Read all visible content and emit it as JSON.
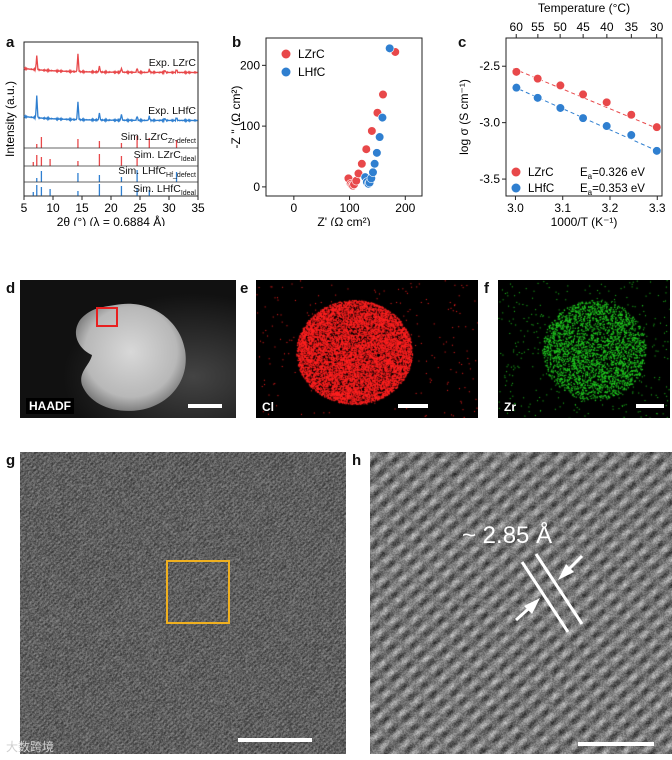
{
  "panel_labels": {
    "a": "a",
    "b": "b",
    "c": "c",
    "d": "d",
    "e": "e",
    "f": "f",
    "g": "g",
    "h": "h"
  },
  "chart_data": [
    {
      "type": "line",
      "panel": "a",
      "xlabel": "2θ (°) (λ = 0.6884 Å)",
      "ylabel": "Intensity (a.u.)",
      "xlim": [
        5,
        35
      ],
      "xticks": [
        5,
        10,
        15,
        20,
        25,
        30,
        35
      ],
      "series": [
        {
          "name": "Exp. LZrC",
          "color": "#e8484a",
          "peaks": [
            [
              7.2,
              14
            ],
            [
              14.3,
              18
            ],
            [
              18.0,
              6
            ],
            [
              21.8,
              4
            ],
            [
              24.5,
              4
            ],
            [
              26.6,
              3
            ],
            [
              29.3,
              2
            ],
            [
              31.3,
              3
            ]
          ]
        },
        {
          "name": "Exp. LHfC",
          "color": "#2f7fd0",
          "peaks": [
            [
              7.2,
              22
            ],
            [
              14.3,
              18
            ],
            [
              18.0,
              7
            ],
            [
              21.8,
              6
            ],
            [
              24.5,
              4
            ],
            [
              26.6,
              4
            ],
            [
              29.3,
              2
            ],
            [
              31.3,
              3
            ]
          ]
        },
        {
          "name": "Sim. LZrC",
          "subscript": "Zr-defect",
          "color": "#e8484a",
          "sticks": [
            7.2,
            8.0,
            14.3,
            18.0,
            21.8,
            24.5,
            26.6,
            31.3
          ]
        },
        {
          "name": "Sim. LZrC",
          "subscript": "Ideal",
          "color": "#e8484a",
          "sticks": [
            6.6,
            7.2,
            8.0,
            9.5,
            14.3,
            18.0,
            21.8,
            24.5
          ]
        },
        {
          "name": "Sim. LHfC",
          "subscript": "Hf_defect",
          "color": "#2f7fd0",
          "sticks": [
            7.2,
            8.0,
            14.3,
            18.0,
            21.8,
            24.5,
            31.3
          ]
        },
        {
          "name": "Sim. LHfC",
          "subscript": "Ideal",
          "color": "#2f7fd0",
          "sticks": [
            6.6,
            7.2,
            8.0,
            9.5,
            14.3,
            18.0,
            21.8,
            24.5,
            26.6
          ]
        }
      ]
    },
    {
      "type": "scatter",
      "panel": "b",
      "xlabel": "Z' (Ω cm²)",
      "ylabel": "-Z '' (Ω cm²)",
      "xlim": [
        -50,
        230
      ],
      "ylim": [
        -15,
        245
      ],
      "xticks": [
        0,
        100,
        200
      ],
      "yticks": [
        0,
        100,
        200
      ],
      "legend": "top-left",
      "series": [
        {
          "name": "LZrC",
          "color": "#e8484a",
          "x": [
            98,
            102,
            104,
            106,
            108,
            112,
            116,
            122,
            130,
            140,
            150,
            160,
            182
          ],
          "y": [
            14,
            5,
            3,
            2,
            4,
            10,
            22,
            38,
            62,
            92,
            122,
            152,
            222
          ]
        },
        {
          "name": "LHfC",
          "color": "#2f7fd0",
          "x": [
            128,
            131,
            134,
            136,
            139,
            142,
            145,
            149,
            154,
            159,
            172
          ],
          "y": [
            16,
            8,
            5,
            7,
            14,
            24,
            38,
            56,
            82,
            114,
            228
          ]
        }
      ]
    },
    {
      "type": "scatter",
      "panel": "c",
      "xlabel": "1000/T (K⁻¹)",
      "ylabel": "log σ (S cm⁻¹)",
      "top_xlabel": "Temperature (°C)",
      "xlim": [
        2.98,
        3.31
      ],
      "ylim": [
        -3.65,
        -2.25
      ],
      "xticks": [
        3.0,
        3.1,
        3.2,
        3.3
      ],
      "xticklabels": [
        "3.0",
        "3.1",
        "3.2",
        "3.3"
      ],
      "yticks": [
        -2.5,
        -3.0,
        -3.5
      ],
      "yticklabels": [
        "-2.5",
        "-3.0",
        "-3.5"
      ],
      "top_ticks": [
        60,
        55,
        50,
        45,
        40,
        35,
        30
      ],
      "legend": "bottom-left",
      "series": [
        {
          "name": "LZrC",
          "color": "#e8484a",
          "ea_label": "E",
          "x": [
            3.002,
            3.047,
            3.095,
            3.143,
            3.193,
            3.245,
            3.299
          ],
          "y": [
            -2.55,
            -2.61,
            -2.67,
            -2.75,
            -2.82,
            -2.93,
            -3.04
          ],
          "fit": [
            [
              2.995,
              -2.52
            ],
            [
              3.305,
              -3.06
            ]
          ]
        },
        {
          "name": "LHfC",
          "color": "#2f7fd0",
          "x": [
            3.002,
            3.047,
            3.095,
            3.143,
            3.193,
            3.245,
            3.299
          ],
          "y": [
            -2.69,
            -2.78,
            -2.87,
            -2.96,
            -3.03,
            -3.11,
            -3.25
          ],
          "fit": [
            [
              2.995,
              -2.68
            ],
            [
              3.305,
              -3.26
            ]
          ]
        }
      ],
      "annotations": [
        {
          "prefix": "E",
          "sub": "a",
          "text": "=0.326 eV"
        },
        {
          "prefix": "E",
          "sub": "a",
          "text": "=0.353 eV"
        }
      ]
    }
  ],
  "images": {
    "d": {
      "tag": "HAADF",
      "color": "#ffffff"
    },
    "e": {
      "tag": "Cl",
      "color": "#ff2020"
    },
    "f": {
      "tag": "Zr",
      "color": "#20d020"
    },
    "g": {
      "box_color": "#f0b020"
    },
    "h": {
      "annotation": "~ 2.85 Å"
    }
  },
  "watermark": "大数跨境"
}
